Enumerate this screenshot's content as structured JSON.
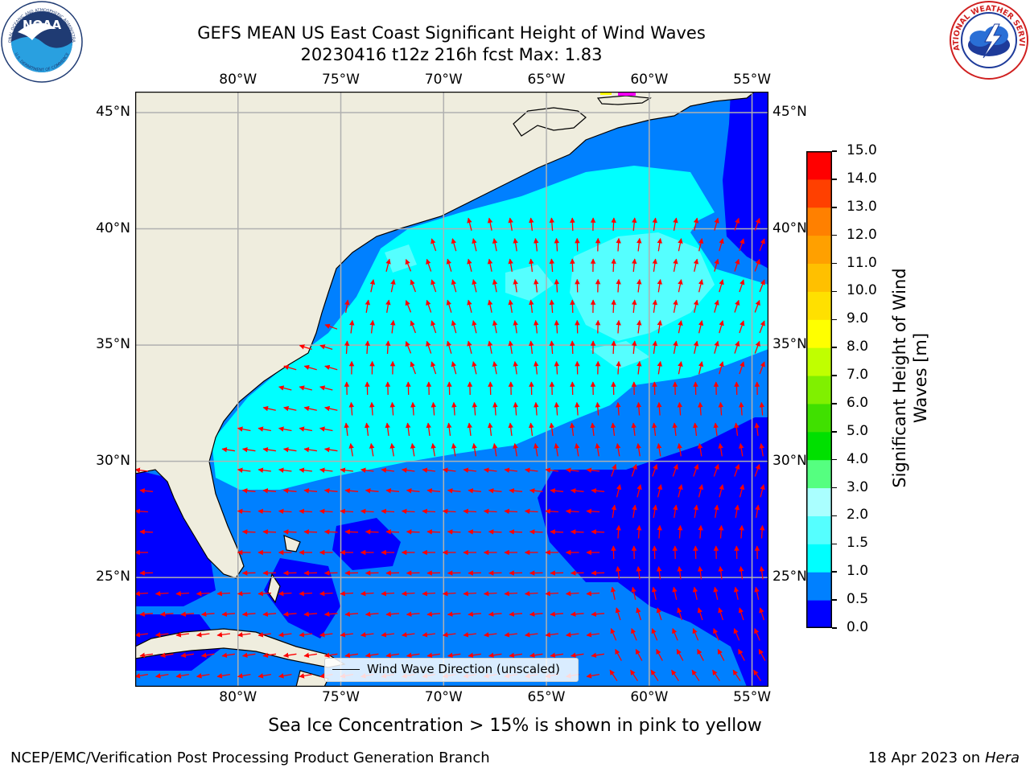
{
  "title": {
    "line1": "GEFS MEAN US East Coast Significant Height of Wind Waves",
    "line2": "20230416 t12z 216h fcst   Max: 1.83"
  },
  "map": {
    "lon_labels": [
      "80°W",
      "75°W",
      "70°W",
      "65°W",
      "60°W",
      "55°W"
    ],
    "lat_labels": [
      "45°N",
      "40°N",
      "35°N",
      "30°N",
      "25°N"
    ],
    "lon_range": [
      -85,
      -54.2
    ],
    "lat_range": [
      20.3,
      45.9
    ],
    "colors": {
      "land": "#efedde",
      "c0": "#0000ff",
      "c1": "#0080ff",
      "c2": "#00ffff",
      "c3": "#55ffff",
      "c4": "#aaffff",
      "arrow": "#ff0000",
      "grid": "#b0b0b0"
    },
    "legend": "Wind Wave Direction (unscaled)"
  },
  "colorbar": {
    "label": "Significant Height of Wind Waves [m]",
    "label_line1": "Significant Height of Wind",
    "label_line2": "Waves [m]",
    "ticks": [
      "0.0",
      "0.5",
      "1.0",
      "1.5",
      "2.0",
      "3.0",
      "4.0",
      "5.0",
      "6.0",
      "7.0",
      "8.0",
      "9.0",
      "10.0",
      "11.0",
      "12.0",
      "13.0",
      "14.0",
      "15.0"
    ],
    "colors": [
      "#0000ff",
      "#0080ff",
      "#00ffff",
      "#55ffff",
      "#aaffff",
      "#55ff80",
      "#00e000",
      "#40e000",
      "#80f000",
      "#c0ff00",
      "#ffff00",
      "#ffe000",
      "#ffc000",
      "#ffa000",
      "#ff8000",
      "#ff4000",
      "#ff0000"
    ]
  },
  "note": "Sea Ice Concentration > 15% is shown in pink to yellow",
  "logos": {
    "noaa": "NOAA",
    "noaa_ring": "NATIONAL OCEANIC AND ATMOSPHERIC ADMINISTRATION",
    "noaa_ring2": "U.S. DEPARTMENT OF COMMERCE",
    "nws_ring": "NATIONAL WEATHER SERVICE"
  },
  "footer": {
    "left": "NCEP/EMC/Verification Post Processing Product Generation Branch",
    "right_date": "18 Apr 2023 on ",
    "right_host": "Hera"
  }
}
